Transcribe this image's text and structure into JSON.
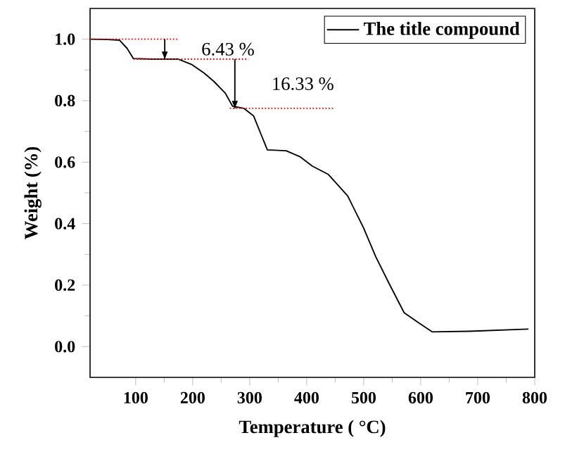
{
  "chart_data": {
    "type": "line",
    "xlabel": "Temperature ( °C)",
    "ylabel": "Weight (%)",
    "xlim": [
      20,
      800
    ],
    "ylim": [
      -0.1,
      1.1
    ],
    "xticks": [
      100,
      200,
      300,
      400,
      500,
      600,
      700,
      800
    ],
    "yticks": [
      {
        "value": 0.0,
        "label": "0.0"
      },
      {
        "value": 0.2,
        "label": "0.2"
      },
      {
        "value": 0.4,
        "label": "0.4"
      },
      {
        "value": 0.6,
        "label": "0.6"
      },
      {
        "value": 0.8,
        "label": "0.8"
      },
      {
        "value": 1.0,
        "label": "1.0"
      }
    ],
    "legend": "top right",
    "grid": false,
    "series": [
      {
        "name": "The title compound",
        "color": "#000000",
        "x": [
          20,
          50,
          71.5,
          85,
          96,
          130,
          175,
          199,
          220,
          237,
          257,
          270,
          290,
          307,
          320,
          331,
          364,
          389,
          410,
          438,
          472,
          500,
          521,
          546,
          571,
          596,
          620,
          686,
          789
        ],
        "values": [
          1.0,
          0.999,
          0.997,
          0.97,
          0.937,
          0.935,
          0.935,
          0.917,
          0.89,
          0.863,
          0.825,
          0.782,
          0.775,
          0.75,
          0.69,
          0.64,
          0.637,
          0.617,
          0.587,
          0.56,
          0.49,
          0.385,
          0.293,
          0.2,
          0.11,
          0.078,
          0.048,
          0.05,
          0.057
        ]
      },
      {
        "color": "#ff0000",
        "line_style": "dotted",
        "x": [
          20,
          175
        ],
        "values": [
          1.0,
          1.0
        ]
      },
      {
        "color": "#ff0000",
        "line_style": "dotted",
        "x": [
          96,
          298
        ],
        "values": [
          0.935,
          0.935
        ]
      },
      {
        "color": "#ff0000",
        "line_style": "dotted",
        "x": [
          265,
          447
        ],
        "values": [
          0.775,
          0.775
        ]
      },
      {
        "color": "#000000",
        "x": [
          151,
          151
        ],
        "values": [
          1.0,
          0.935
        ]
      },
      {
        "color": "#000000",
        "x": [
          274,
          274
        ],
        "values": [
          0.935,
          0.775
        ]
      }
    ],
    "annotations": [
      "6.43 %",
      "16.33 %"
    ]
  }
}
